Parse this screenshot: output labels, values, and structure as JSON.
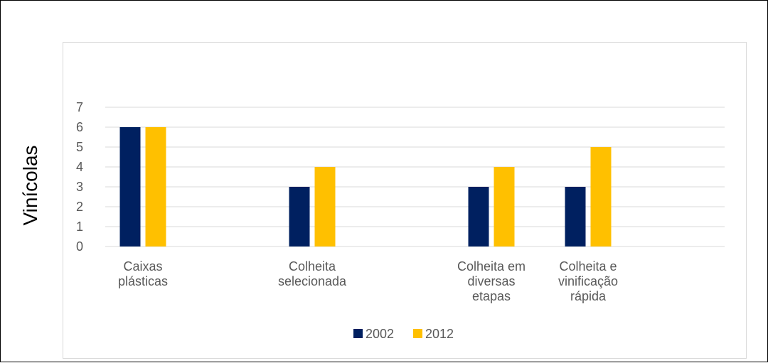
{
  "chart_data": {
    "type": "bar",
    "ylabel": "Vinícolas",
    "xlabel": "",
    "title": "",
    "ylim": [
      0,
      7
    ],
    "yticks": [
      0,
      1,
      2,
      3,
      4,
      5,
      6,
      7
    ],
    "grid": true,
    "legend_position": "bottom",
    "categories": [
      [
        "Caixas",
        "plásticas"
      ],
      [
        "Colheita",
        "selecionada"
      ],
      [
        "Colheita em",
        "diversas",
        "etapas"
      ],
      [
        "Colheita e",
        "vinificação",
        "rápida"
      ]
    ],
    "series": [
      {
        "name": "2002",
        "color": "#002060",
        "values": [
          6,
          3,
          3,
          3
        ]
      },
      {
        "name": "2012",
        "color": "#ffc000",
        "values": [
          6,
          4,
          4,
          5
        ]
      }
    ]
  }
}
